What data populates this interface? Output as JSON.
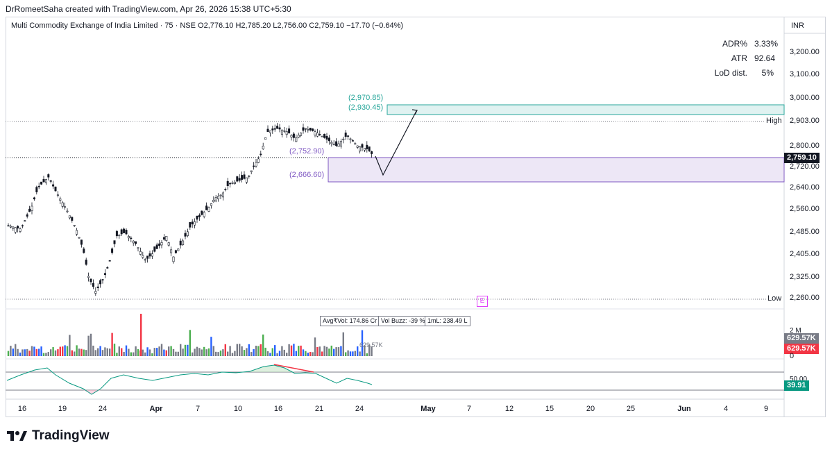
{
  "header": {
    "author_line": "DrRomeetSaha created with TradingView.com, Apr 26, 2026 15:38 UTC+5:30"
  },
  "legend": {
    "symbol": "Multi Commodity Exchange of India Limited · 75 · NSE",
    "open": "O2,776.10",
    "high": "H2,785.20",
    "low": "L2,756.00",
    "close": "C2,759.10",
    "change": "−17.70 (−0.64%)"
  },
  "stats": [
    {
      "label": "ADR%",
      "value": "3.33%"
    },
    {
      "label": "ATR",
      "value": "92.64"
    },
    {
      "label": "LoD dist.",
      "value": "5%"
    }
  ],
  "price_axis": {
    "currency": "INR",
    "labels": [
      "3,200.00",
      "3,100.00",
      "3,000.00",
      "2,903.00",
      "2,800.00",
      "2,759.10",
      "2,720.00",
      "2,640.00",
      "2,560.00",
      "2,485.00",
      "2,405.00",
      "2,325.00",
      "2,260.00"
    ],
    "high_tag": "High",
    "low_tag": "Low",
    "last_price": "2,759.10",
    "last_color": "#131722",
    "vol_tags": [
      "2 M",
      "629.57K",
      "629.57K",
      "0"
    ],
    "osc_tags": [
      "50.00",
      "39.91"
    ]
  },
  "zones": {
    "upper_top": "(2,970.85)",
    "upper_bottom": "(2,930.45)",
    "lower_top": "(2,752.90)",
    "lower_bottom": "(2,666.60)",
    "upper_color": "#26a69a",
    "lower_color": "#7e57c2"
  },
  "volume": {
    "avg_label": "Avg₹Vol: 174.86 Cr",
    "buzz_label": "Vol Buzz: -39 %",
    "iml_label": "1mL: 238.49 L",
    "last_vol": "629.57K"
  },
  "time_axis": [
    "16",
    "19",
    "24",
    "Apr",
    "7",
    "10",
    "16",
    "21",
    "24",
    "May",
    "7",
    "12",
    "15",
    "20",
    "25",
    "Jun",
    "4",
    "9"
  ],
  "earnings_badge": "E",
  "brand": "TradingView",
  "colors": {
    "up": "#131722",
    "down": "#131722",
    "vol_up": "#2962ff",
    "vol_down": "#f23645",
    "vol_neutral": "#787b86",
    "osc": "#089981"
  }
}
